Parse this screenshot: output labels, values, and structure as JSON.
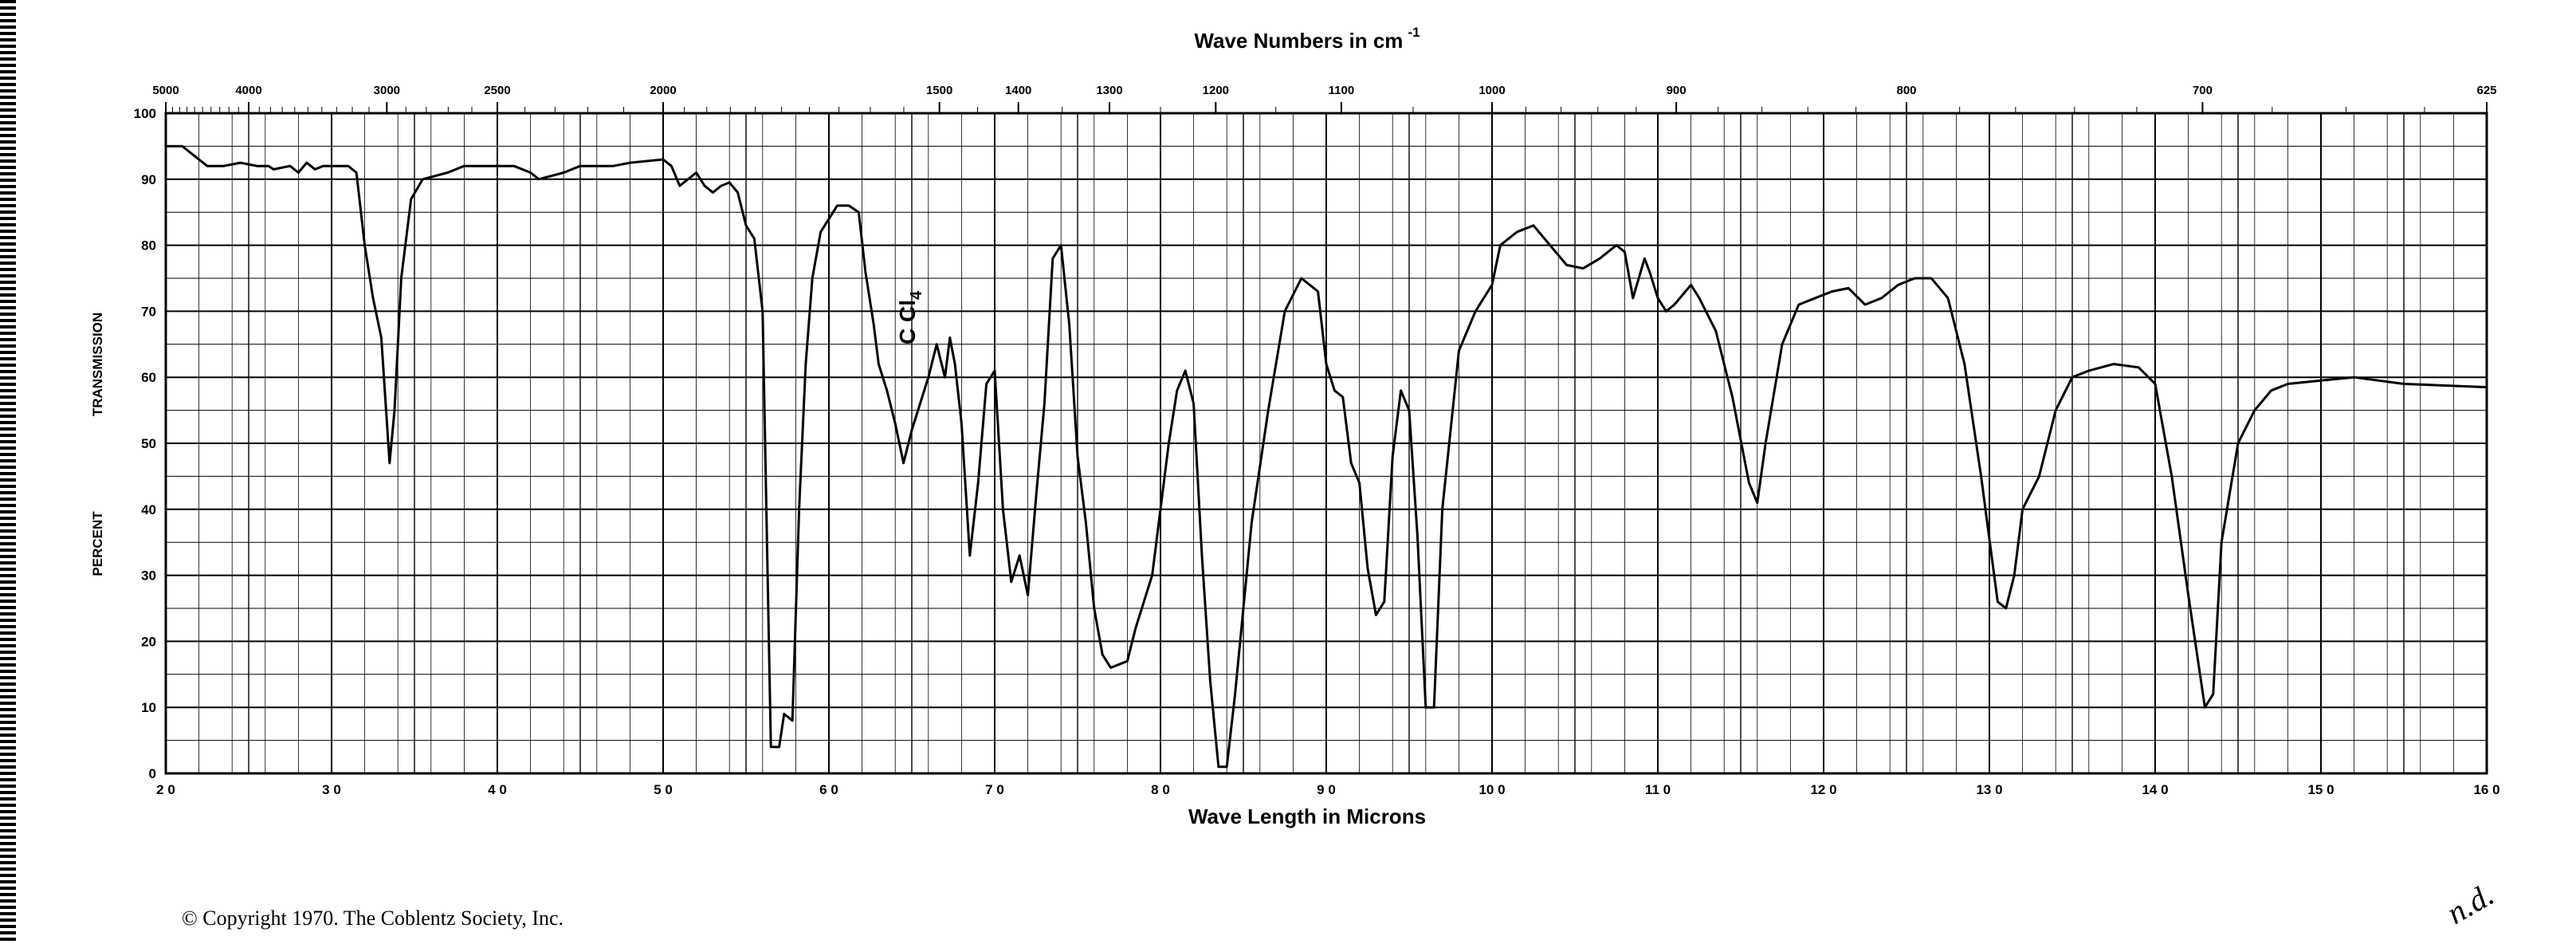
{
  "chart_data": {
    "type": "line",
    "title": "Wave Numbers in cm",
    "title_superscript": "-1",
    "xlabel": "Wave Length in Microns",
    "ylabel_upper": "TRANSMISSION",
    "ylabel_lower": "PERCENT",
    "compound_label": "C Cl",
    "compound_subscript": "4",
    "copyright": "© Copyright 1970. The Coblentz Society, Inc.",
    "signature": "n.d.",
    "xlim": [
      2.0,
      16.0
    ],
    "ylim": [
      0,
      100
    ],
    "grid": true,
    "x_tick_values": [
      2,
      3,
      4,
      5,
      6,
      7,
      8,
      9,
      10,
      11,
      12,
      13,
      14,
      15,
      16
    ],
    "x_tick_labels": [
      "2 0",
      "3 0",
      "4 0",
      "5 0",
      "6 0",
      "7 0",
      "8 0",
      "9 0",
      "10 0",
      "11 0",
      "12 0",
      "13 0",
      "14 0",
      "15 0",
      "16 0"
    ],
    "y_ticks": [
      "0",
      "10",
      "20",
      "30",
      "40",
      "50",
      "60",
      "70",
      "80",
      "90",
      "100"
    ],
    "top_tick_wavenumbers": [
      5000,
      4000,
      3000,
      2500,
      2000,
      1500,
      1400,
      1300,
      1200,
      1100,
      1000,
      900,
      800,
      700,
      625
    ],
    "top_tick_labels": [
      "5000",
      "4000",
      "3000",
      "2500",
      "2000",
      "1500",
      "1400",
      "1300",
      "1200",
      "1100",
      "1000",
      "900",
      "800",
      "700",
      "625"
    ],
    "series": [
      {
        "points": [
          [
            2.0,
            95
          ],
          [
            2.1,
            95
          ],
          [
            2.2,
            93
          ],
          [
            2.25,
            92
          ],
          [
            2.35,
            92
          ],
          [
            2.45,
            92.5
          ],
          [
            2.55,
            92
          ],
          [
            2.62,
            92
          ],
          [
            2.65,
            91.5
          ],
          [
            2.75,
            92
          ],
          [
            2.8,
            91
          ],
          [
            2.85,
            92.5
          ],
          [
            2.9,
            91.5
          ],
          [
            2.95,
            92
          ],
          [
            3.0,
            92
          ],
          [
            3.1,
            92
          ],
          [
            3.15,
            91
          ],
          [
            3.2,
            80
          ],
          [
            3.25,
            72
          ],
          [
            3.3,
            66
          ],
          [
            3.35,
            47
          ],
          [
            3.38,
            55
          ],
          [
            3.42,
            75
          ],
          [
            3.48,
            87
          ],
          [
            3.55,
            90
          ],
          [
            3.7,
            91
          ],
          [
            3.8,
            92
          ],
          [
            4.0,
            92
          ],
          [
            4.1,
            92
          ],
          [
            4.2,
            91
          ],
          [
            4.25,
            90
          ],
          [
            4.4,
            91
          ],
          [
            4.5,
            92
          ],
          [
            4.7,
            92
          ],
          [
            4.8,
            92.5
          ],
          [
            5.0,
            93
          ],
          [
            5.05,
            92
          ],
          [
            5.1,
            89
          ],
          [
            5.15,
            90
          ],
          [
            5.2,
            91
          ],
          [
            5.25,
            89
          ],
          [
            5.3,
            88
          ],
          [
            5.35,
            89
          ],
          [
            5.4,
            89.5
          ],
          [
            5.45,
            88
          ],
          [
            5.5,
            83
          ],
          [
            5.55,
            81
          ],
          [
            5.6,
            70
          ],
          [
            5.65,
            4
          ],
          [
            5.7,
            4
          ],
          [
            5.73,
            9
          ],
          [
            5.78,
            8
          ],
          [
            5.82,
            40
          ],
          [
            5.86,
            62
          ],
          [
            5.9,
            75
          ],
          [
            5.95,
            82
          ],
          [
            6.05,
            86
          ],
          [
            6.12,
            86
          ],
          [
            6.18,
            85
          ],
          [
            6.22,
            76
          ],
          [
            6.27,
            68
          ],
          [
            6.3,
            62
          ],
          [
            6.35,
            58
          ],
          [
            6.4,
            53
          ],
          [
            6.45,
            47
          ],
          [
            6.5,
            52
          ],
          [
            6.55,
            56
          ],
          [
            6.6,
            60
          ],
          [
            6.65,
            65
          ],
          [
            6.7,
            60
          ],
          [
            6.73,
            66
          ],
          [
            6.76,
            62
          ],
          [
            6.8,
            53
          ],
          [
            6.85,
            33
          ],
          [
            6.9,
            44
          ],
          [
            6.95,
            59
          ],
          [
            7.0,
            61
          ],
          [
            7.05,
            40
          ],
          [
            7.1,
            29
          ],
          [
            7.15,
            33
          ],
          [
            7.2,
            27
          ],
          [
            7.25,
            42
          ],
          [
            7.3,
            56
          ],
          [
            7.35,
            78
          ],
          [
            7.4,
            80
          ],
          [
            7.45,
            68
          ],
          [
            7.5,
            48
          ],
          [
            7.55,
            38
          ],
          [
            7.6,
            25
          ],
          [
            7.65,
            18
          ],
          [
            7.7,
            16
          ],
          [
            7.8,
            17
          ],
          [
            7.85,
            22
          ],
          [
            7.95,
            30
          ],
          [
            8.05,
            50
          ],
          [
            8.1,
            58
          ],
          [
            8.15,
            61
          ],
          [
            8.2,
            56
          ],
          [
            8.25,
            33
          ],
          [
            8.3,
            14
          ],
          [
            8.35,
            1
          ],
          [
            8.4,
            1
          ],
          [
            8.45,
            12
          ],
          [
            8.55,
            38
          ],
          [
            8.65,
            55
          ],
          [
            8.75,
            70
          ],
          [
            8.85,
            75
          ],
          [
            8.95,
            73
          ],
          [
            9.0,
            62
          ],
          [
            9.05,
            58
          ],
          [
            9.1,
            57
          ],
          [
            9.15,
            47
          ],
          [
            9.2,
            44
          ],
          [
            9.25,
            31
          ],
          [
            9.3,
            24
          ],
          [
            9.35,
            26
          ],
          [
            9.4,
            48
          ],
          [
            9.45,
            58
          ],
          [
            9.5,
            55
          ],
          [
            9.55,
            36
          ],
          [
            9.6,
            10
          ],
          [
            9.65,
            10
          ],
          [
            9.7,
            40
          ],
          [
            9.8,
            64
          ],
          [
            9.9,
            70
          ],
          [
            10.0,
            74
          ],
          [
            10.05,
            80
          ],
          [
            10.15,
            82
          ],
          [
            10.25,
            83
          ],
          [
            10.35,
            80
          ],
          [
            10.45,
            77
          ],
          [
            10.55,
            76.5
          ],
          [
            10.65,
            78
          ],
          [
            10.75,
            80
          ],
          [
            10.8,
            79
          ],
          [
            10.85,
            72
          ],
          [
            10.92,
            78
          ],
          [
            10.95,
            76
          ],
          [
            11.0,
            72
          ],
          [
            11.05,
            70
          ],
          [
            11.1,
            71
          ],
          [
            11.2,
            74
          ],
          [
            11.25,
            72
          ],
          [
            11.35,
            67
          ],
          [
            11.45,
            57
          ],
          [
            11.55,
            44
          ],
          [
            11.6,
            41
          ],
          [
            11.65,
            50
          ],
          [
            11.75,
            65
          ],
          [
            11.85,
            71
          ],
          [
            11.95,
            72
          ],
          [
            12.05,
            73
          ],
          [
            12.15,
            73.5
          ],
          [
            12.25,
            71
          ],
          [
            12.35,
            72
          ],
          [
            12.45,
            74
          ],
          [
            12.55,
            75
          ],
          [
            12.65,
            75
          ],
          [
            12.75,
            72
          ],
          [
            12.85,
            62
          ],
          [
            12.95,
            45
          ],
          [
            13.05,
            26
          ],
          [
            13.1,
            25
          ],
          [
            13.15,
            30
          ],
          [
            13.2,
            40
          ],
          [
            13.3,
            45
          ],
          [
            13.4,
            55
          ],
          [
            13.5,
            60
          ],
          [
            13.6,
            61
          ],
          [
            13.75,
            62
          ],
          [
            13.9,
            61.5
          ],
          [
            14.0,
            59
          ],
          [
            14.1,
            45
          ],
          [
            14.2,
            27
          ],
          [
            14.3,
            10
          ],
          [
            14.35,
            12
          ],
          [
            14.4,
            35
          ],
          [
            14.5,
            50
          ],
          [
            14.6,
            55
          ],
          [
            14.7,
            58
          ],
          [
            14.8,
            59
          ],
          [
            15.0,
            59.5
          ],
          [
            15.2,
            60
          ],
          [
            15.5,
            59
          ],
          [
            16.0,
            58.5
          ]
        ]
      }
    ]
  }
}
